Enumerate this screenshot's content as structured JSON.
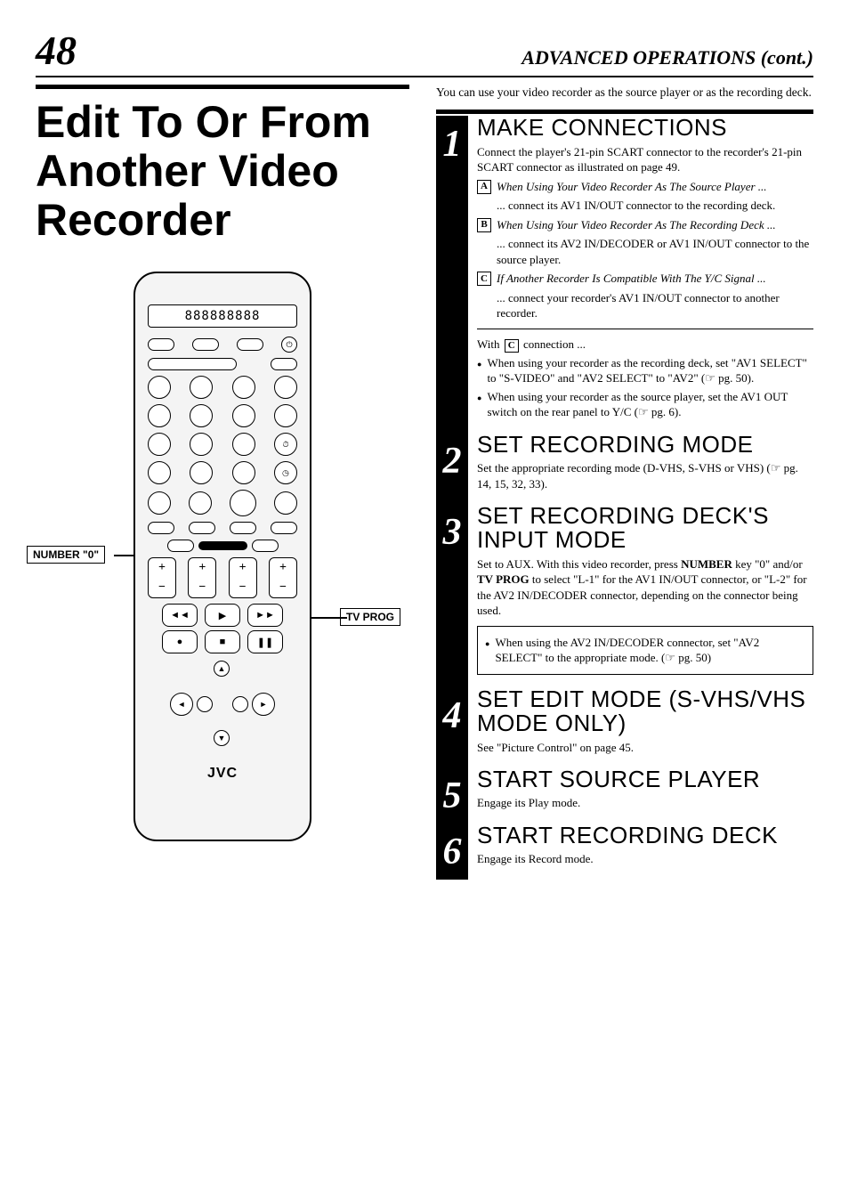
{
  "page_number": "48",
  "section_header": "ADVANCED OPERATIONS (cont.)",
  "main_title": "Edit To Or From Another Video Recorder",
  "remote": {
    "lcd_text": "888888888",
    "logo": "JVC",
    "callouts": {
      "number0": "NUMBER \"0\"",
      "tvprog": "TV PROG"
    }
  },
  "intro": "You can use your video recorder as the source player or as the recording deck.",
  "steps": [
    {
      "num": "1",
      "title": "MAKE CONNECTIONS",
      "text": "Connect the player's 21-pin SCART connector to the recorder's 21-pin SCART connector as illustrated on page 49.",
      "subs": [
        {
          "letter": "A",
          "head": "When Using Your Video Recorder As The Source Player ...",
          "body": "... connect its AV1 IN/OUT connector to the recording deck."
        },
        {
          "letter": "B",
          "head": "When Using Your Video Recorder As The Recording Deck ...",
          "body": "... connect its AV2 IN/DECODER or AV1 IN/OUT connector to the source player."
        },
        {
          "letter": "C",
          "head": "If Another Recorder Is Compatible With The Y/C Signal ...",
          "body": "... connect your recorder's AV1 IN/OUT connector to another recorder."
        }
      ],
      "note_intro": "With",
      "note_letter": "C",
      "note_after": "connection ...",
      "bullets": [
        "When using your recorder as the recording deck, set \"AV1 SELECT\" to \"S-VIDEO\" and \"AV2 SELECT\" to \"AV2\" (☞ pg. 50).",
        "When using your recorder as the source player, set the AV1 OUT switch on the rear panel to Y/C (☞ pg. 6)."
      ]
    },
    {
      "num": "2",
      "title": "SET RECORDING MODE",
      "text": "Set the appropriate recording mode (D-VHS, S-VHS or VHS) (☞ pg. 14, 15, 32, 33)."
    },
    {
      "num": "3",
      "title": "SET RECORDING DECK'S INPUT MODE",
      "text_parts": [
        "Set to AUX. With this video recorder, press ",
        "NUMBER",
        " key \"0\" and/or ",
        "TV PROG",
        " to select \"L-1\" for the AV1 IN/OUT connector, or \"L-2\" for the AV2 IN/DECODER connector,  depending on the connector being used."
      ],
      "boxed_bullet": "When using the AV2 IN/DECODER connector, set \"AV2 SELECT\" to the appropriate mode. (☞ pg. 50)"
    },
    {
      "num": "4",
      "title": "SET EDIT MODE (S-VHS/VHS MODE ONLY)",
      "text": "See \"Picture Control\" on page 45."
    },
    {
      "num": "5",
      "title": "START SOURCE PLAYER",
      "text": "Engage its Play mode."
    },
    {
      "num": "6",
      "title": "START RECORDING DECK",
      "text": "Engage its Record mode."
    }
  ],
  "step_heights": [
    352,
    80,
    170,
    110,
    90,
    100
  ],
  "colors": {
    "text": "#000000",
    "bg": "#ffffff",
    "sidebar": "#000000"
  }
}
